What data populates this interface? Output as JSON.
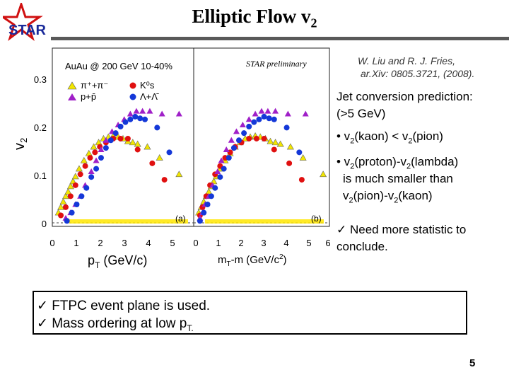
{
  "logo": {
    "text": "STAR"
  },
  "title": {
    "main": "Elliptic Flow v",
    "sub": "2"
  },
  "reference": {
    "line1": "W. Liu and R. J. Fries,",
    "line2": "ar.Xiv: 0805.3721, (2008)."
  },
  "right_text": {
    "heading1": "Jet conversion prediction:",
    "heading2": "(>5 GeV)",
    "b1_pre": "• v",
    "b1_s1": "2",
    "b1_mid": "(kaon) < v",
    "b1_s2": "2",
    "b1_post": "(pion)",
    "b2_pre": "• v",
    "b2_s1": "2",
    "b2_mid": "(proton)-v",
    "b2_s2": "2",
    "b2_post": "(lambda)",
    "b2_line2": "is much smaller than",
    "b3_pre": "v",
    "b3_s1": "2",
    "b3_mid": "(pion)-v",
    "b3_s2": "2",
    "b3_post": "(kaon)",
    "check_line1": "✓ Need more statistic to",
    "check_line2": "conclude."
  },
  "bottom_box": {
    "line1": "✓ FTPC event plane is used.",
    "line2_pre": "✓ Mass ordering at low p",
    "line2_sub": "T."
  },
  "page_number": "5",
  "colors": {
    "pion": "#f2e600",
    "kaon": "#e01010",
    "proton": "#a020c8",
    "lambda": "#1438d8",
    "band": "#ffe600"
  },
  "chart_data": [
    {
      "type": "scatter",
      "panel_tag": "(a)",
      "ylabel_main": "v",
      "ylabel_sub": "2",
      "xlabel_pre": "p",
      "xlabel_sub": "T",
      "xlabel_post": " (GeV/c)",
      "xlim": [
        0,
        5.8
      ],
      "ylim": [
        -0.005,
        0.32
      ],
      "xticks": [
        "0",
        "1",
        "2",
        "3",
        "4",
        "5"
      ],
      "yticks": [
        "0",
        "0.1",
        "0.2",
        "0.3"
      ],
      "legend_title": "AuAu @ 200 GeV 10-40%",
      "legend": [
        "π⁺+π⁻",
        "K⁰s",
        "p+p̄",
        "Λ+Λ̄"
      ],
      "series": [
        {
          "name": "π⁺+π⁻",
          "marker": "triangle",
          "color": "#f2e600",
          "points": [
            [
              0.25,
              0.02
            ],
            [
              0.35,
              0.03
            ],
            [
              0.45,
              0.04
            ],
            [
              0.55,
              0.05
            ],
            [
              0.65,
              0.058
            ],
            [
              0.75,
              0.068
            ],
            [
              0.85,
              0.077
            ],
            [
              0.95,
              0.086
            ],
            [
              1.1,
              0.1
            ],
            [
              1.3,
              0.115
            ],
            [
              1.5,
              0.128
            ],
            [
              1.7,
              0.14
            ],
            [
              1.9,
              0.148
            ],
            [
              2.1,
              0.155
            ],
            [
              2.3,
              0.158
            ],
            [
              2.5,
              0.16
            ],
            [
              2.7,
              0.158
            ],
            [
              2.9,
              0.155
            ],
            [
              3.1,
              0.15
            ],
            [
              3.3,
              0.148
            ],
            [
              3.5,
              0.145
            ],
            [
              3.9,
              0.14
            ],
            [
              4.4,
              0.12
            ],
            [
              5.2,
              0.09
            ]
          ]
        },
        {
          "name": "K⁰s",
          "marker": "circle",
          "color": "#e01010",
          "points": [
            [
              0.35,
              0.015
            ],
            [
              0.55,
              0.03
            ],
            [
              0.75,
              0.05
            ],
            [
              0.95,
              0.07
            ],
            [
              1.15,
              0.09
            ],
            [
              1.35,
              0.105
            ],
            [
              1.55,
              0.12
            ],
            [
              1.75,
              0.13
            ],
            [
              1.95,
              0.14
            ],
            [
              2.2,
              0.148
            ],
            [
              2.5,
              0.155
            ],
            [
              2.8,
              0.155
            ],
            [
              3.1,
              0.155
            ],
            [
              3.5,
              0.135
            ],
            [
              4.1,
              0.11
            ],
            [
              4.6,
              0.08
            ]
          ]
        },
        {
          "name": "p+p̄",
          "marker": "triangle",
          "color": "#a020c8",
          "points": [
            [
              0.55,
              0.01
            ],
            [
              0.75,
              0.02
            ],
            [
              0.95,
              0.035
            ],
            [
              1.15,
              0.05
            ],
            [
              1.35,
              0.07
            ],
            [
              1.6,
              0.095
            ],
            [
              1.8,
              0.115
            ],
            [
              2.0,
              0.135
            ],
            [
              2.2,
              0.152
            ],
            [
              2.45,
              0.168
            ],
            [
              2.7,
              0.18
            ],
            [
              2.95,
              0.19
            ],
            [
              3.2,
              0.2
            ],
            [
              3.45,
              0.205
            ],
            [
              3.7,
              0.205
            ],
            [
              4.0,
              0.205
            ],
            [
              4.5,
              0.2
            ],
            [
              5.2,
              0.2
            ]
          ]
        },
        {
          "name": "Λ+Λ̄",
          "marker": "circle",
          "color": "#1438d8",
          "points": [
            [
              0.6,
              0.005
            ],
            [
              0.8,
              0.02
            ],
            [
              1.0,
              0.035
            ],
            [
              1.2,
              0.05
            ],
            [
              1.4,
              0.065
            ],
            [
              1.6,
              0.085
            ],
            [
              1.8,
              0.1
            ],
            [
              2.0,
              0.12
            ],
            [
              2.2,
              0.138
            ],
            [
              2.4,
              0.152
            ],
            [
              2.6,
              0.165
            ],
            [
              2.8,
              0.177
            ],
            [
              3.0,
              0.185
            ],
            [
              3.2,
              0.19
            ],
            [
              3.4,
              0.195
            ],
            [
              3.6,
              0.192
            ],
            [
              3.8,
              0.19
            ],
            [
              4.3,
              0.175
            ],
            [
              4.8,
              0.13
            ]
          ]
        }
      ]
    },
    {
      "type": "scatter",
      "panel_tag": "(b)",
      "xlabel_pre": "m",
      "xlabel_sub": "T",
      "xlabel_post": "-m (GeV/c",
      "xlabel_sup": "2",
      "xlabel_end": ")",
      "annotation": "STAR preliminary",
      "xlim": [
        -0.1,
        5.3
      ],
      "ylim": [
        -0.005,
        0.32
      ],
      "xticks": [
        "0",
        "1",
        "2",
        "3",
        "4",
        "5",
        "6"
      ],
      "series": [
        {
          "name": "π⁺+π⁻",
          "marker": "triangle",
          "color": "#f2e600",
          "points": [
            [
              0.1,
              0.02
            ],
            [
              0.2,
              0.03
            ],
            [
              0.3,
              0.04
            ],
            [
              0.4,
              0.05
            ],
            [
              0.5,
              0.058
            ],
            [
              0.6,
              0.068
            ],
            [
              0.7,
              0.077
            ],
            [
              0.8,
              0.086
            ],
            [
              0.95,
              0.1
            ],
            [
              1.15,
              0.115
            ],
            [
              1.35,
              0.128
            ],
            [
              1.55,
              0.14
            ],
            [
              1.75,
              0.148
            ],
            [
              1.95,
              0.155
            ],
            [
              2.15,
              0.158
            ],
            [
              2.35,
              0.16
            ],
            [
              2.55,
              0.158
            ],
            [
              2.75,
              0.155
            ],
            [
              2.95,
              0.15
            ],
            [
              3.15,
              0.148
            ],
            [
              3.35,
              0.145
            ],
            [
              3.75,
              0.14
            ],
            [
              4.25,
              0.12
            ],
            [
              5.05,
              0.09
            ]
          ]
        },
        {
          "name": "K⁰s",
          "marker": "circle",
          "color": "#e01010",
          "points": [
            [
              0.15,
              0.015
            ],
            [
              0.25,
              0.03
            ],
            [
              0.4,
              0.05
            ],
            [
              0.55,
              0.07
            ],
            [
              0.75,
              0.09
            ],
            [
              0.95,
              0.105
            ],
            [
              1.15,
              0.12
            ],
            [
              1.35,
              0.13
            ],
            [
              1.55,
              0.14
            ],
            [
              1.8,
              0.148
            ],
            [
              2.1,
              0.155
            ],
            [
              2.4,
              0.155
            ],
            [
              2.7,
              0.155
            ],
            [
              3.1,
              0.135
            ],
            [
              3.7,
              0.11
            ],
            [
              4.2,
              0.08
            ]
          ]
        },
        {
          "name": "p+p̄",
          "marker": "triangle",
          "color": "#a020c8",
          "points": [
            [
              0.15,
              0.01
            ],
            [
              0.25,
              0.02
            ],
            [
              0.35,
              0.035
            ],
            [
              0.5,
              0.05
            ],
            [
              0.65,
              0.07
            ],
            [
              0.85,
              0.095
            ],
            [
              1.0,
              0.115
            ],
            [
              1.2,
              0.135
            ],
            [
              1.4,
              0.152
            ],
            [
              1.6,
              0.168
            ],
            [
              1.85,
              0.18
            ],
            [
              2.1,
              0.19
            ],
            [
              2.35,
              0.2
            ],
            [
              2.6,
              0.205
            ],
            [
              2.85,
              0.205
            ],
            [
              3.15,
              0.205
            ],
            [
              3.65,
              0.2
            ],
            [
              4.35,
              0.2
            ]
          ]
        },
        {
          "name": "Λ+Λ̄",
          "marker": "circle",
          "color": "#1438d8",
          "points": [
            [
              0.15,
              0.005
            ],
            [
              0.3,
              0.02
            ],
            [
              0.45,
              0.035
            ],
            [
              0.6,
              0.05
            ],
            [
              0.75,
              0.065
            ],
            [
              0.95,
              0.085
            ],
            [
              1.1,
              0.1
            ],
            [
              1.3,
              0.12
            ],
            [
              1.5,
              0.138
            ],
            [
              1.7,
              0.152
            ],
            [
              1.9,
              0.165
            ],
            [
              2.1,
              0.177
            ],
            [
              2.3,
              0.185
            ],
            [
              2.5,
              0.19
            ],
            [
              2.7,
              0.195
            ],
            [
              2.9,
              0.192
            ],
            [
              3.1,
              0.19
            ],
            [
              3.6,
              0.175
            ],
            [
              4.1,
              0.13
            ]
          ]
        }
      ]
    }
  ]
}
